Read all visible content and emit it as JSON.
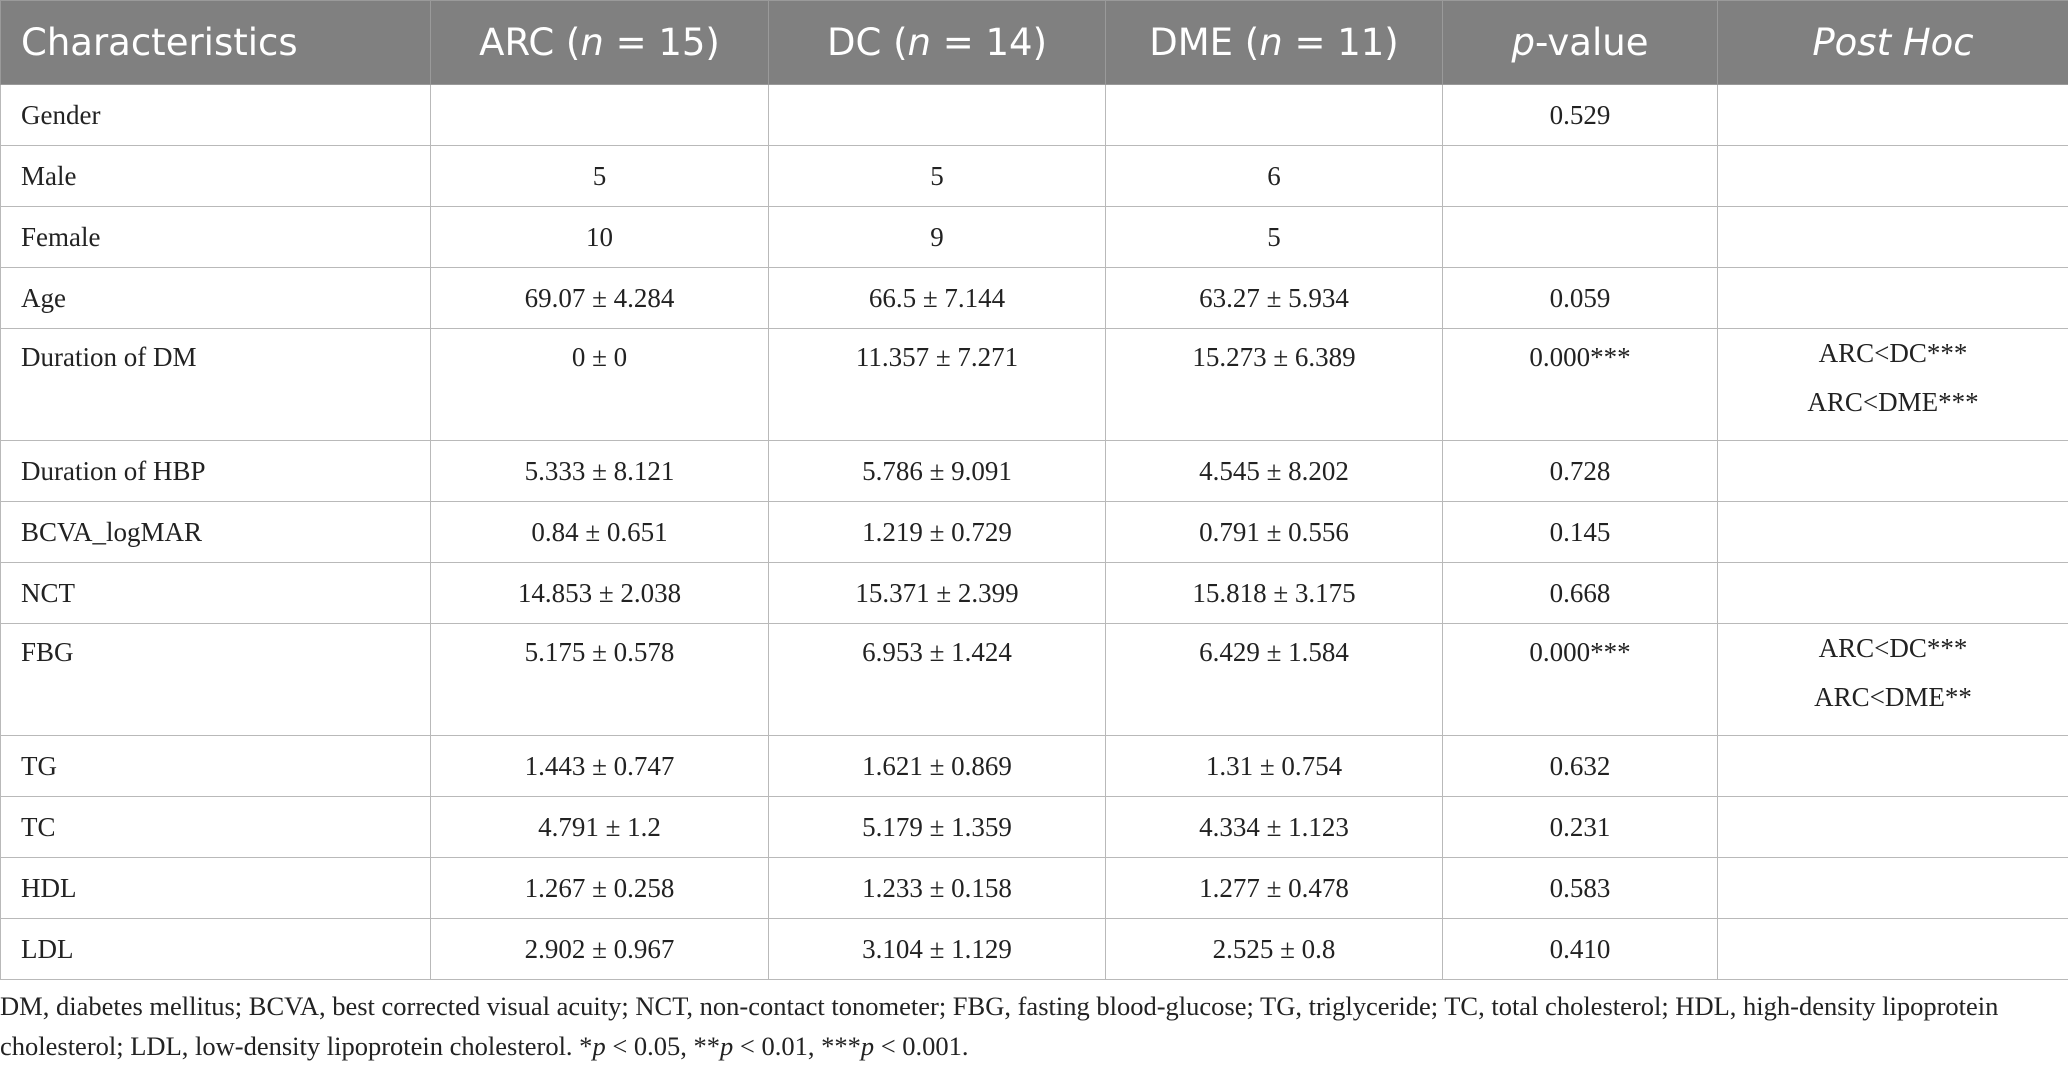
{
  "header": {
    "characteristics": "Characteristics",
    "arc_name": "ARC (",
    "arc_n": "n",
    "arc_count": " = 15)",
    "dc_name": "DC (",
    "dc_n": "n",
    "dc_count": " = 14)",
    "dme_name": "DME (",
    "dme_n": "n",
    "dme_count": " = 11)",
    "p_italic": "p",
    "p_rest": "-value",
    "posthoc": "Post Hoc"
  },
  "rows": [
    {
      "label": "Gender",
      "arc": "",
      "dc": "",
      "dme": "",
      "p": "0.529",
      "posthoc": [
        "",
        ""
      ]
    },
    {
      "label": "Male",
      "arc": "5",
      "dc": "5",
      "dme": "6",
      "p": "",
      "posthoc": [
        "",
        ""
      ]
    },
    {
      "label": "Female",
      "arc": "10",
      "dc": "9",
      "dme": "5",
      "p": "",
      "posthoc": [
        "",
        ""
      ]
    },
    {
      "label": "Age",
      "arc": "69.07 ± 4.284",
      "dc": "66.5 ± 7.144",
      "dme": "63.27 ± 5.934",
      "p": "0.059",
      "posthoc": [
        "",
        ""
      ]
    },
    {
      "label": "Duration of DM",
      "arc": "0 ± 0",
      "dc": "11.357 ± 7.271",
      "dme": "15.273 ± 6.389",
      "p": "0.000***",
      "posthoc": [
        "ARC<DC***",
        "ARC<DME***"
      ]
    },
    {
      "label": "Duration of HBP",
      "arc": "5.333 ± 8.121",
      "dc": "5.786 ± 9.091",
      "dme": "4.545 ± 8.202",
      "p": "0.728",
      "posthoc": [
        "",
        ""
      ]
    },
    {
      "label": "BCVA_logMAR",
      "arc": "0.84 ± 0.651",
      "dc": "1.219 ± 0.729",
      "dme": "0.791 ± 0.556",
      "p": "0.145",
      "posthoc": [
        "",
        ""
      ]
    },
    {
      "label": "NCT",
      "arc": "14.853 ± 2.038",
      "dc": "15.371 ± 2.399",
      "dme": "15.818 ± 3.175",
      "p": "0.668",
      "posthoc": [
        "",
        ""
      ]
    },
    {
      "label": "FBG",
      "arc": "5.175 ± 0.578",
      "dc": "6.953 ± 1.424",
      "dme": "6.429 ± 1.584",
      "p": "0.000***",
      "posthoc": [
        "ARC<DC***",
        "ARC<DME**"
      ]
    },
    {
      "label": "TG",
      "arc": "1.443 ± 0.747",
      "dc": "1.621 ± 0.869",
      "dme": "1.31 ± 0.754",
      "p": "0.632",
      "posthoc": [
        "",
        ""
      ]
    },
    {
      "label": "TC",
      "arc": "4.791 ± 1.2",
      "dc": "5.179 ± 1.359",
      "dme": "4.334 ± 1.123",
      "p": "0.231",
      "posthoc": [
        "",
        ""
      ]
    },
    {
      "label": "HDL",
      "arc": "1.267 ± 0.258",
      "dc": "1.233 ± 0.158",
      "dme": "1.277 ± 0.478",
      "p": "0.583",
      "posthoc": [
        "",
        ""
      ]
    },
    {
      "label": "LDL",
      "arc": "2.902 ± 0.967",
      "dc": "3.104 ± 1.129",
      "dme": "2.525 ± 0.8",
      "p": "0.410",
      "posthoc": [
        "",
        ""
      ]
    }
  ],
  "footnote": {
    "text": "DM, diabetes mellitus; BCVA, best corrected visual acuity; NCT, non-contact tonometer; FBG, fasting blood-glucose; TG, triglyceride; TC, total cholesterol; HDL, high-density lipoprotein cholesterol; LDL, low-density lipoprotein cholesterol. *",
    "p1": "p",
    "t1": " < 0.05, **",
    "p2": "p",
    "t2": " < 0.01, ***",
    "p3": "p",
    "t3": " < 0.001."
  }
}
